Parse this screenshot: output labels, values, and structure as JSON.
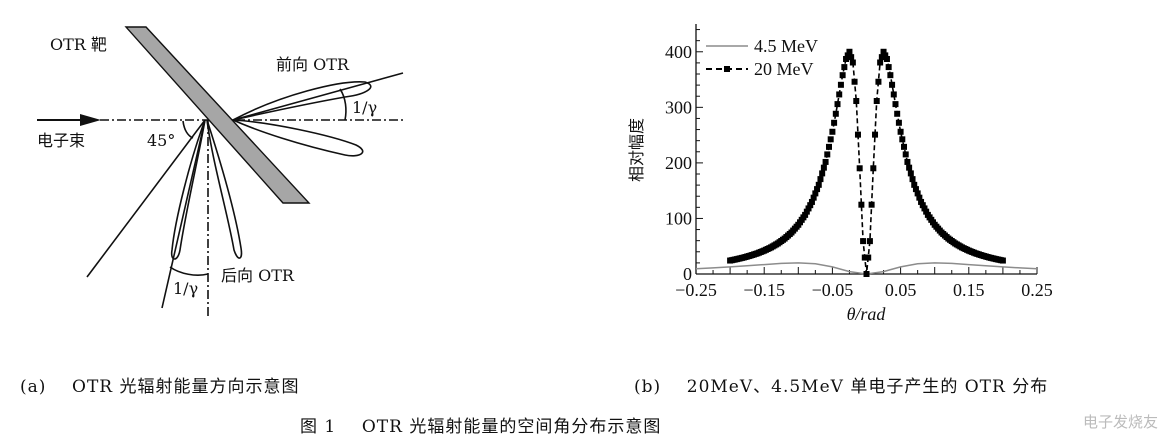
{
  "diagram_a": {
    "target_label": "OTR 靶",
    "forward_label": "前向 OTR",
    "beam_label": "电子束",
    "angle_label": "45°",
    "forward_angle_label": "1/γ",
    "backward_angle_label": "1/γ",
    "backward_label": "后向 OTR",
    "colors": {
      "target_fill": "#a6a6a6",
      "line": "#111111"
    }
  },
  "captions": {
    "a": "(a)    OTR 光辐射能量方向示意图",
    "b": "(b)    20MeV、4.5MeV 单电子产生的 OTR 分布",
    "figure": "图 1    OTR 光辐射能量的空间角分布示意图"
  },
  "watermark": "电子发烧友",
  "chart_data": {
    "type": "line",
    "xlabel": "θ/rad",
    "ylabel": "相对幅度",
    "xlim": [
      -0.25,
      0.25
    ],
    "ylim": [
      0,
      450
    ],
    "xticks": [
      "-0.25",
      "-0.15",
      "-0.05",
      "0.05",
      "0.15",
      "0.25"
    ],
    "yticks": [
      "0",
      "100",
      "200",
      "300",
      "400"
    ],
    "legend_position": "top-left",
    "grid": false,
    "series": [
      {
        "name": "4.5 MeV",
        "style": "solid",
        "color": "#8c8c8c",
        "x": [
          -0.25,
          -0.225,
          -0.2,
          -0.175,
          -0.15,
          -0.125,
          -0.1,
          -0.075,
          -0.05,
          -0.025,
          0,
          0.025,
          0.05,
          0.075,
          0.1,
          0.125,
          0.15,
          0.175,
          0.2,
          0.225,
          0.25
        ],
        "y": [
          9.5,
          11.0,
          12.8,
          14.8,
          17.0,
          19.0,
          20.0,
          18.4,
          12.8,
          4.4,
          0,
          4.4,
          12.8,
          18.4,
          20.0,
          19.0,
          17.0,
          14.8,
          12.8,
          11.0,
          9.5
        ]
      },
      {
        "name": "20 MeV",
        "style": "dashed-square-markers",
        "color": "#000000",
        "x": [
          -0.2,
          -0.19,
          -0.18,
          -0.17,
          -0.16,
          -0.15,
          -0.14,
          -0.13,
          -0.12,
          -0.11,
          -0.1,
          -0.09,
          -0.08,
          -0.07,
          -0.06,
          -0.05,
          -0.045,
          -0.04,
          -0.035,
          -0.03,
          -0.025,
          -0.02,
          -0.015,
          -0.01,
          -0.005,
          0,
          0.005,
          0.01,
          0.015,
          0.02,
          0.025,
          0.03,
          0.035,
          0.04,
          0.045,
          0.05,
          0.06,
          0.07,
          0.08,
          0.09,
          0.1,
          0.11,
          0.12,
          0.13,
          0.14,
          0.15,
          0.16,
          0.17,
          0.18,
          0.19,
          0.2
        ],
        "y": [
          24.2,
          26.8,
          29.7,
          33.2,
          37.2,
          42.1,
          47.9,
          55.0,
          63.8,
          74.7,
          88.6,
          106.4,
          129.7,
          160.5,
          201.7,
          256.0,
          288.4,
          323.2,
          357.9,
          387.0,
          400.0,
          380.7,
          311.4,
          190.3,
          59.2,
          0,
          59.2,
          190.3,
          311.4,
          380.7,
          400.0,
          387.0,
          357.9,
          323.2,
          288.4,
          256.0,
          201.7,
          160.5,
          129.7,
          106.4,
          88.6,
          74.7,
          63.8,
          55.0,
          47.9,
          42.1,
          37.2,
          33.2,
          29.7,
          26.8,
          24.2
        ]
      }
    ]
  }
}
